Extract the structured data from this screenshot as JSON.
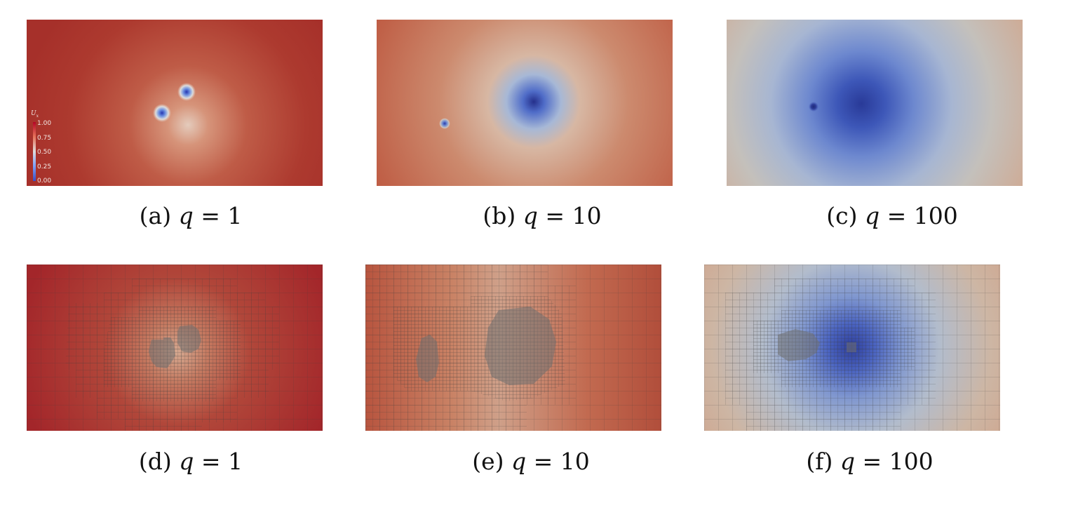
{
  "figure": {
    "rows": [
      {
        "panels": [
          {
            "tag": "(a)",
            "var": "q",
            "eq": "=",
            "val": "1"
          },
          {
            "tag": "(b)",
            "var": "q",
            "eq": "=",
            "val": "10"
          },
          {
            "tag": "(c)",
            "var": "q",
            "eq": "=",
            "val": "100"
          }
        ]
      },
      {
        "panels": [
          {
            "tag": "(d)",
            "var": "q",
            "eq": "=",
            "val": "1"
          },
          {
            "tag": "(e)",
            "var": "q",
            "eq": "=",
            "val": "10"
          },
          {
            "tag": "(f)",
            "var": "q",
            "eq": "=",
            "val": "100"
          }
        ]
      }
    ],
    "colorbar": {
      "title": "U",
      "subscript": "x",
      "ticks": [
        "1.00",
        "0.75",
        "0.50",
        "0.25",
        "0.00"
      ],
      "range": [
        0,
        1
      ]
    },
    "colors": {
      "high": "#a93228",
      "mid": "#dcd9d3",
      "low": "#2c3d93",
      "mesh_line": "#555555"
    }
  }
}
